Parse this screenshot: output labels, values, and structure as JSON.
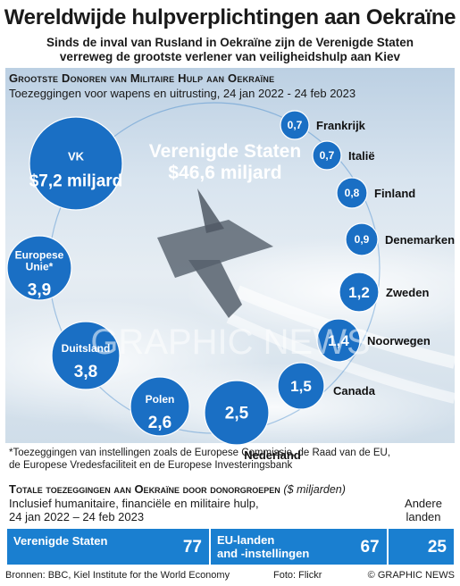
{
  "title": "Wereldwijde hulpverplichtingen aan Oekraïne",
  "subtitle_line1": "Sinds de inval van Rusland in Oekraïne zijn de Verenigde Staten",
  "subtitle_line2": "verreweg de grootste verlener van veiligheidshulp aan Kiev",
  "military": {
    "heading": "Grootste Donoren van Militaire Hulp aan Oekraïne",
    "subheading": "Toezeggingen voor wapens en uitrusting, 24 jan 2022 - 24 feb 2023"
  },
  "watermark": "GRAPHIC NEWS",
  "chart_data": [
    {
      "type": "bubble",
      "title": "Grootste Donoren van Militaire Hulp aan Oekraïne",
      "unit": "$ miljarden",
      "items": [
        {
          "name": "Verenigde Staten",
          "label_top": "Verenigde Staten",
          "label_value": "$46,6 miljard",
          "value": 46.6
        },
        {
          "name": "VK",
          "label_top": "VK",
          "label_value": "$7,2 miljard",
          "value": 7.2
        },
        {
          "name": "Europese Unie*",
          "label_top": "Europese\nUnie*",
          "label_value": "3,9",
          "value": 3.9
        },
        {
          "name": "Duitsland",
          "label_top": "Duitsland",
          "label_value": "3,8",
          "value": 3.8
        },
        {
          "name": "Polen",
          "label_top": "Polen",
          "label_value": "2,6",
          "value": 2.6
        },
        {
          "name": "Nederland",
          "label_top": "Nederland",
          "label_value": "2,5",
          "value": 2.5
        },
        {
          "name": "Canada",
          "label_top": "Canada",
          "label_value": "1,5",
          "value": 1.5
        },
        {
          "name": "Noorwegen",
          "label_top": "Noorwegen",
          "label_value": "1,4",
          "value": 1.4
        },
        {
          "name": "Zweden",
          "label_top": "Zweden",
          "label_value": "1,2",
          "value": 1.2
        },
        {
          "name": "Denemarken",
          "label_top": "Denemarken",
          "label_value": "0,9",
          "value": 0.9
        },
        {
          "name": "Finland",
          "label_top": "Finland",
          "label_value": "0,8",
          "value": 0.8
        },
        {
          "name": "Italië",
          "label_top": "Italië",
          "label_value": "0,7",
          "value": 0.7
        },
        {
          "name": "Frankrijk",
          "label_top": "Frankrijk",
          "label_value": "0,7",
          "value": 0.7
        }
      ]
    },
    {
      "type": "bar",
      "title": "Totale toezeggingen aan Oekraïne door donorgroepen",
      "unit": "($ miljarden)",
      "categories": [
        "Verenigde Staten",
        "EU-landen and -instellingen",
        "Andere landen"
      ],
      "values": [
        77,
        67,
        25
      ],
      "stacked": true
    }
  ],
  "footnote_line1": "*Toezeggingen van instellingen zoals de Europese Commissie, de Raad van de EU,",
  "footnote_line2": "de Europese Vredesfaciliteit en de Europese Investeringsbank",
  "totals": {
    "heading": "Totale toezeggingen aan Oekraïne door donorgroepen",
    "unit": "($ miljarden)",
    "sub_line1": "Inclusief humanitaire, financiële en militaire hulp,",
    "sub_line2": "24 jan 2022 – 24 feb 2023",
    "us_label": "Verenigde Staten",
    "us_value": "77",
    "eu_label_line1": "EU-landen",
    "eu_label_line2": "and -instellingen",
    "eu_value": "67",
    "other_label_line1": "Andere",
    "other_label_line2": "landen",
    "other_value": "25"
  },
  "colors": {
    "bubble": "#1a6fc4",
    "bubble_dark": "#0d4f97",
    "bar": "#1a7fd0"
  },
  "sources": "Bronnen: BBC, Kiel Institute for the World Economy",
  "photo_credit": "Foto: Flickr",
  "brand": "© GRAPHIC NEWS"
}
